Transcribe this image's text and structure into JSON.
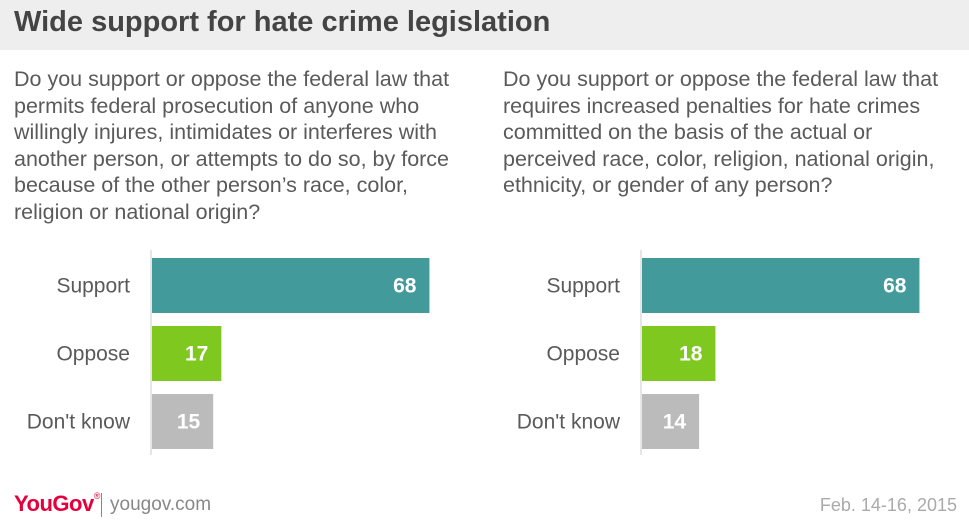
{
  "title": "Wide support for hate crime legislation",
  "footer": {
    "brand": "YouGov",
    "brand_mark": "®",
    "site": "yougov.com",
    "date": "Feb. 14-16, 2015"
  },
  "colors": {
    "Support": "#439a9b",
    "Oppose": "#7ec820",
    "Don't know": "#bbbbbb"
  },
  "chart_data": [
    {
      "type": "bar",
      "orientation": "horizontal",
      "question": "Do you support or oppose the federal law that permits federal prosecution of anyone who willingly injures, intimidates or interferes with another person, or attempts to do so, by force because of the other person’s race, color, religion or national origin?",
      "categories": [
        "Support",
        "Oppose",
        "Don't know"
      ],
      "values": [
        68,
        17,
        15
      ],
      "xlim": [
        0,
        100
      ]
    },
    {
      "type": "bar",
      "orientation": "horizontal",
      "question": "Do you support or oppose the federal law that requires increased penalties for hate crimes committed on the basis of the actual or perceived race, color, religion, national origin, ethnicity, or gender of any person?",
      "categories": [
        "Support",
        "Oppose",
        "Don't know"
      ],
      "values": [
        68,
        18,
        14
      ],
      "xlim": [
        0,
        100
      ]
    }
  ]
}
